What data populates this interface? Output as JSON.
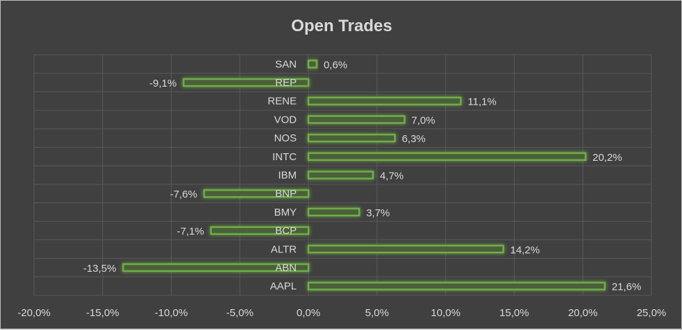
{
  "chart_data": {
    "type": "bar",
    "orientation": "horizontal",
    "title": "Open Trades",
    "categories": [
      "SAN",
      "REP",
      "RENE",
      "VOD",
      "NOS",
      "INTC",
      "IBM",
      "BNP",
      "BMY",
      "BCP",
      "ALTR",
      "ABN",
      "AAPL"
    ],
    "values": [
      0.6,
      -9.1,
      11.1,
      7.0,
      6.3,
      20.2,
      4.7,
      -7.6,
      3.7,
      -7.1,
      14.2,
      -13.5,
      21.6
    ],
    "value_labels": [
      "0,6%",
      "-9,1%",
      "11,1%",
      "7,0%",
      "6,3%",
      "20,2%",
      "4,7%",
      "-7,6%",
      "3,7%",
      "-7,1%",
      "14,2%",
      "-13,5%",
      "21,6%"
    ],
    "xlim": [
      -20,
      25
    ],
    "x_ticks": [
      -20,
      -15,
      -10,
      -5,
      0,
      5,
      10,
      15,
      20,
      25
    ],
    "x_tick_labels": [
      "-20,0%",
      "-15,0%",
      "-10,0%",
      "-5,0%",
      "0,0%",
      "5,0%",
      "10,0%",
      "15,0%",
      "20,0%",
      "25,0%"
    ],
    "xlabel": "",
    "ylabel": "",
    "grid": true,
    "legend": "none",
    "colors": {
      "bar_stroke": "#70ad47",
      "bar_fill": "#4b5f3a",
      "background": "#404040",
      "grid": "#595959"
    }
  }
}
